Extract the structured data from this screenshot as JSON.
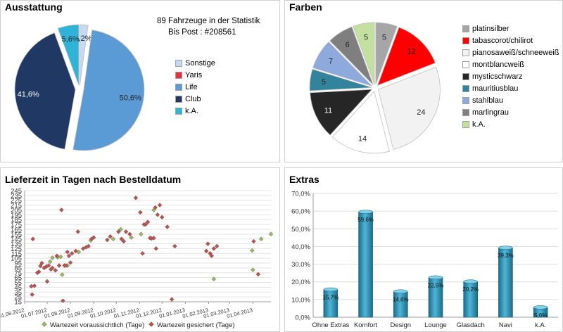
{
  "panels": {
    "ausstattung": {
      "title": "Ausstattung",
      "info_line1": "89  Fahrzeuge in der Statistik",
      "info_line2": "Bis Post :  #208561"
    },
    "farben": {
      "title": "Farben"
    },
    "lieferzeit": {
      "title": "Lieferzeit in Tagen nach Bestelldatum"
    },
    "extras": {
      "title": "Extras"
    }
  },
  "chart_data": [
    {
      "id": "ausstattung",
      "type": "pie",
      "title": "Ausstattung",
      "labels": [
        "Sonstige",
        "Yaris",
        "Life",
        "Club",
        "k.A."
      ],
      "values": [
        2.2,
        0,
        50.6,
        41.6,
        5.6
      ],
      "value_labels": [
        "2,2%",
        "",
        "50,6%",
        "41,6%",
        "5,6%"
      ],
      "colors": [
        "#c5d9f1",
        "#e53040",
        "#5b9bd5",
        "#1f3864",
        "#2fb3d6"
      ],
      "exploded": true,
      "legend": "right"
    },
    {
      "id": "farben",
      "type": "pie",
      "title": "Farben",
      "labels": [
        "platinsilber",
        "tabascorot/chilirot",
        "pianosaweiß/schneeweiß",
        "montblancweiß",
        "mysticschwarz",
        "mauritiusblau",
        "stahlblau",
        "marlingrau",
        "k.A."
      ],
      "values": [
        5,
        12,
        24,
        14,
        11,
        5,
        7,
        6,
        5
      ],
      "colors": [
        "#a6a6a6",
        "#ff0000",
        "#f2f2f2",
        "#ffffff",
        "#262626",
        "#31849b",
        "#8ea9db",
        "#7f7f7f",
        "#c4e0a0"
      ],
      "exploded": true,
      "legend": "right"
    },
    {
      "id": "lieferzeit",
      "type": "scatter",
      "title": "Lieferzeit in Tagen nach Bestelldatum",
      "x_ticks": [
        "01.06.2012",
        "01.07.2012",
        "01.08.2012",
        "01.09.2012",
        "01.10.2012",
        "01.11.2012",
        "01.12.2012",
        "01.01.2013",
        "01.02.2013",
        "01.03.2013",
        "01.04.2013"
      ],
      "x_range": [
        "2012-06-01",
        "2013-04-25"
      ],
      "ylim": [
        15,
        245
      ],
      "y_ticks": [
        15,
        25,
        35,
        45,
        55,
        65,
        75,
        85,
        95,
        105,
        115,
        125,
        135,
        145,
        155,
        165,
        175,
        185,
        195,
        205,
        215,
        225,
        235,
        245
      ],
      "grid": true,
      "legend": "bottom",
      "series": [
        {
          "name": "Wartezeit voraussichtlich (Tage)",
          "color": "#9bbb59",
          "marker": "diamond",
          "points": [
            [
              "2012-07-05",
              98
            ],
            [
              "2012-07-08",
              106
            ],
            [
              "2012-07-15",
              107
            ],
            [
              "2012-07-19",
              108
            ],
            [
              "2012-07-21",
              71
            ],
            [
              "2012-07-28",
              90
            ],
            [
              "2012-08-12",
              118
            ],
            [
              "2012-08-28",
              142
            ],
            [
              "2012-09-27",
              145
            ],
            [
              "2012-10-07",
              165
            ],
            [
              "2012-10-21",
              148
            ],
            [
              "2012-11-03",
              155
            ],
            [
              "2012-11-20",
              205
            ],
            [
              "2013-02-08",
              62
            ],
            [
              "2013-03-31",
              121
            ],
            [
              "2013-04-01",
              81
            ],
            [
              "2013-04-12",
              145
            ],
            [
              "2013-04-25",
              155
            ]
          ]
        },
        {
          "name": "Wartezeit gesichert (Tage)",
          "color": "#c0504d",
          "marker": "diamond",
          "points": [
            [
              "2012-06-10",
              47
            ],
            [
              "2012-06-11",
              30
            ],
            [
              "2012-06-12",
              145
            ],
            [
              "2012-06-14",
              48
            ],
            [
              "2012-06-18",
              75
            ],
            [
              "2012-06-20",
              77
            ],
            [
              "2012-06-22",
              89
            ],
            [
              "2012-06-24",
              95
            ],
            [
              "2012-06-27",
              85
            ],
            [
              "2012-06-30",
              88
            ],
            [
              "2012-07-01",
              57
            ],
            [
              "2012-07-03",
              90
            ],
            [
              "2012-07-06",
              82
            ],
            [
              "2012-07-08",
              85
            ],
            [
              "2012-07-12",
              80
            ],
            [
              "2012-07-14",
              110
            ],
            [
              "2012-07-17",
              90
            ],
            [
              "2012-07-20",
              205
            ],
            [
              "2012-07-22",
              17
            ],
            [
              "2012-07-24",
              90
            ],
            [
              "2012-07-26",
              90
            ],
            [
              "2012-07-28",
              118
            ],
            [
              "2012-07-30",
              110
            ],
            [
              "2012-08-01",
              96
            ],
            [
              "2012-08-03",
              115
            ],
            [
              "2012-08-08",
              120
            ],
            [
              "2012-08-11",
              160
            ],
            [
              "2012-08-18",
              125
            ],
            [
              "2012-08-22",
              128
            ],
            [
              "2012-08-25",
              130
            ],
            [
              "2012-08-29",
              145
            ],
            [
              "2012-09-01",
              148
            ],
            [
              "2012-09-19",
              143
            ],
            [
              "2012-09-23",
              150
            ],
            [
              "2012-10-04",
              160
            ],
            [
              "2012-10-08",
              145
            ],
            [
              "2012-10-11",
              140
            ],
            [
              "2012-10-14",
              160
            ],
            [
              "2012-10-19",
              155
            ],
            [
              "2012-10-27",
              230
            ],
            [
              "2012-11-02",
              200
            ],
            [
              "2012-11-05",
              115
            ],
            [
              "2012-11-07",
              175
            ],
            [
              "2012-11-09",
              175
            ],
            [
              "2012-11-12",
              180
            ],
            [
              "2012-11-15",
              147
            ],
            [
              "2012-11-17",
              146
            ],
            [
              "2012-11-20",
              147
            ],
            [
              "2012-11-22",
              210
            ],
            [
              "2012-11-23",
              125
            ],
            [
              "2012-11-25",
              195
            ],
            [
              "2012-11-28",
              215
            ],
            [
              "2012-12-01",
              190
            ],
            [
              "2012-12-08",
              170
            ],
            [
              "2012-12-14",
              20
            ],
            [
              "2012-12-18",
              130
            ],
            [
              "2013-01-29",
              120
            ],
            [
              "2013-01-31",
              135
            ],
            [
              "2013-02-03",
              115
            ],
            [
              "2013-02-05",
              110
            ],
            [
              "2013-02-08",
              125
            ],
            [
              "2013-02-12",
              130
            ],
            [
              "2013-04-02",
              140
            ],
            [
              "2013-04-08",
              72
            ]
          ]
        }
      ]
    },
    {
      "id": "extras",
      "type": "bar",
      "title": "Extras",
      "categories": [
        "Ohne Extras",
        "Komfort",
        "Design",
        "Lounge",
        "Glasdach",
        "Navi",
        "k.A."
      ],
      "values": [
        15.7,
        59.6,
        14.6,
        22.5,
        20.2,
        39.3,
        5.6
      ],
      "value_labels": [
        "15,7%",
        "59,6%",
        "14,6%",
        "22,5%",
        "20,2%",
        "39,3%",
        "5,6%"
      ],
      "ylim": [
        0,
        70
      ],
      "y_ticks": [
        "0,0%",
        "10,0%",
        "20,0%",
        "30,0%",
        "40,0%",
        "50,0%",
        "60,0%",
        "70,0%"
      ],
      "color": "#2a8ab0",
      "grid": true
    }
  ]
}
